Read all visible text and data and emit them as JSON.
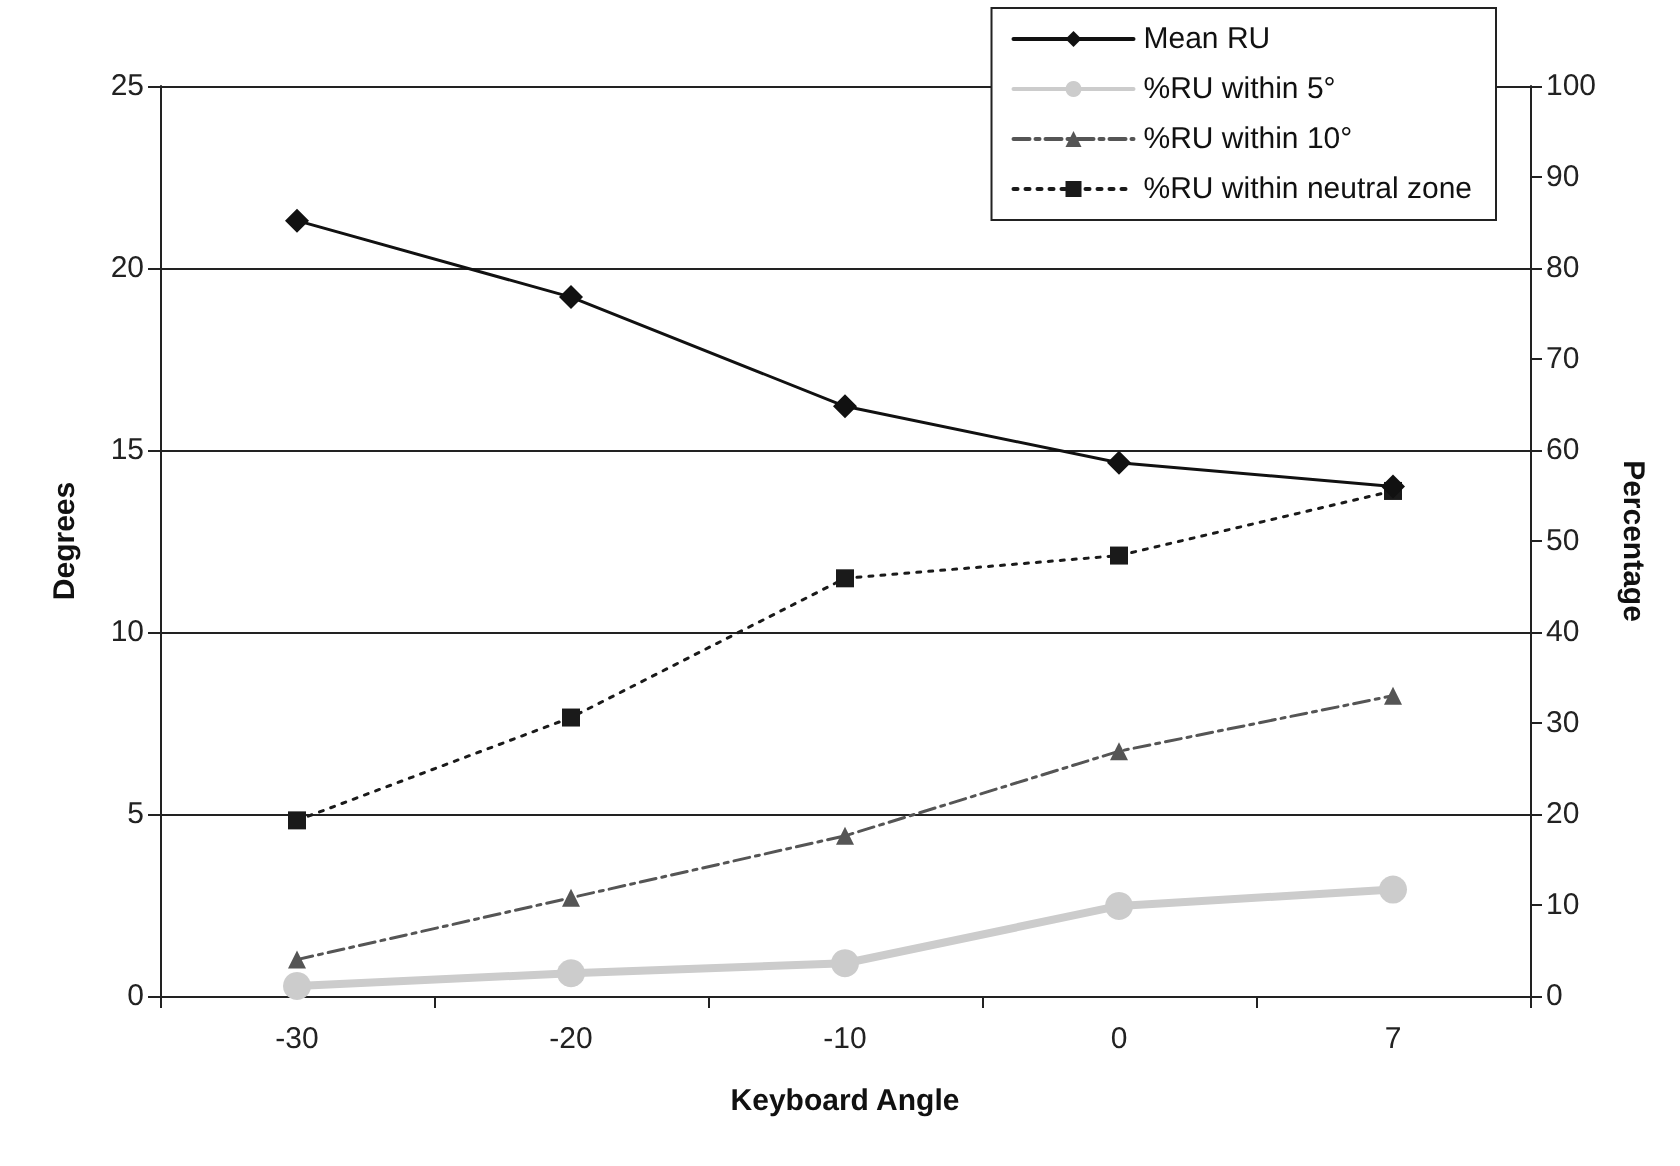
{
  "chart_data": {
    "type": "line",
    "xlabel": "Keyboard Angle",
    "ylabel": "Degrees",
    "y2label": "Percentage",
    "categories": [
      "-30",
      "-20",
      "-10",
      "0",
      "7"
    ],
    "series": [
      {
        "name": "Mean RU",
        "color": "#111111",
        "values": [
          21.3,
          19.2,
          16.2,
          14.65,
          14.0
        ],
        "marker": "diamond",
        "line_style": "solid"
      },
      {
        "name": "%RU within 5°",
        "color": "#cccccc",
        "values": [
          1.1,
          2.5,
          3.6,
          9.9,
          11.7
        ],
        "marker": "circle",
        "line_style": "solid",
        "axis": "y2"
      },
      {
        "name": "%RU within 10°",
        "color": "#555555",
        "values": [
          4.0,
          10.8,
          17.6,
          26.9,
          33.0
        ],
        "marker": "triangle",
        "line_style": "dashed",
        "axis": "y2"
      },
      {
        "name": "%RU within neutral zone",
        "color": "#1a1a1a",
        "values": [
          19.3,
          30.6,
          45.9,
          48.4,
          55.5
        ],
        "marker": "square",
        "line_style": "dotted",
        "axis": "y2"
      }
    ],
    "ylim": [
      0,
      25
    ],
    "yticks": [
      0,
      5,
      10,
      15,
      20,
      25
    ],
    "y2lim": [
      0,
      100
    ],
    "y2ticks": [
      0,
      10,
      20,
      30,
      40,
      50,
      60,
      70,
      80,
      90,
      100
    ],
    "grid": "y",
    "legend": "top right"
  }
}
